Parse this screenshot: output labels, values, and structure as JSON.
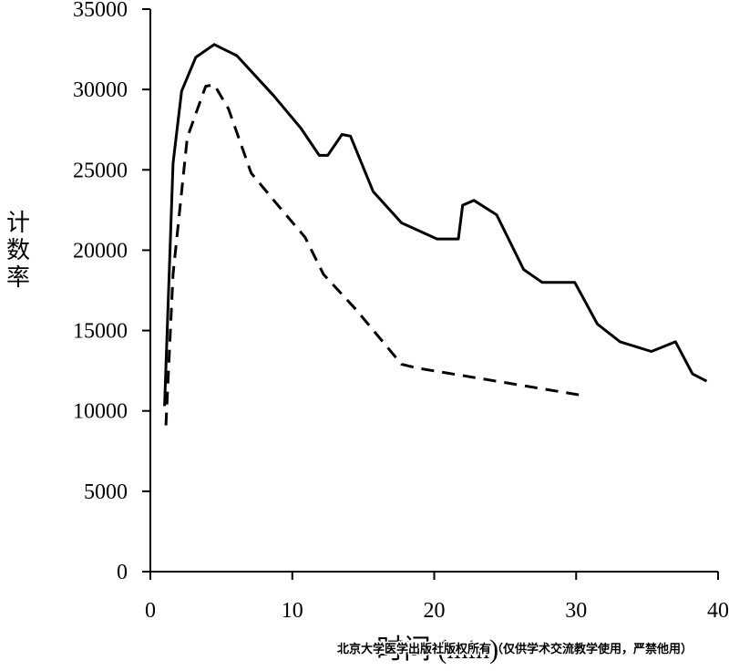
{
  "chart_data": {
    "type": "line",
    "y_label": "计数率",
    "x_label": "时间 (min)",
    "watermark": "北京大学医学出版社版权所有（仅供学术交流教学使用，严禁他用）",
    "xlim": [
      0,
      40
    ],
    "xticks": [
      0,
      10,
      20,
      30,
      40
    ],
    "ylim": [
      0,
      35000
    ],
    "yticks": [
      0,
      5000,
      10000,
      15000,
      20000,
      25000,
      30000,
      35000
    ],
    "series": [
      {
        "color": "#000000",
        "style": "solid",
        "x": [
          1.0,
          1.6,
          2.2,
          3.2,
          4.5,
          6.1,
          8.7,
          10.6,
          11.9,
          12.5,
          13.5,
          14.1,
          15.7,
          17.7,
          20.2,
          21.7,
          22.0,
          22.8,
          24.4,
          26.3,
          27.6,
          29.9,
          31.5,
          33.1,
          35.3,
          37.0,
          38.2,
          39.2
        ],
        "values": [
          10300,
          25400,
          29900,
          32000,
          32800,
          32100,
          29600,
          27600,
          25900,
          25900,
          27200,
          27100,
          23650,
          21700,
          20700,
          20700,
          22800,
          23100,
          22200,
          18800,
          18000,
          18000,
          15400,
          14300,
          13700,
          14300,
          12300,
          11850
        ]
      },
      {
        "color": "#000000",
        "style": "dashed",
        "x": [
          1.1,
          1.6,
          2.6,
          3.9,
          4.5,
          5.5,
          7.1,
          8.7,
          10.9,
          12.2,
          14.5,
          17.7,
          18.9,
          30.2
        ],
        "values": [
          9100,
          18500,
          27000,
          30200,
          30300,
          28800,
          24800,
          23100,
          20800,
          18500,
          16300,
          12900,
          12650,
          11000
        ]
      }
    ]
  }
}
